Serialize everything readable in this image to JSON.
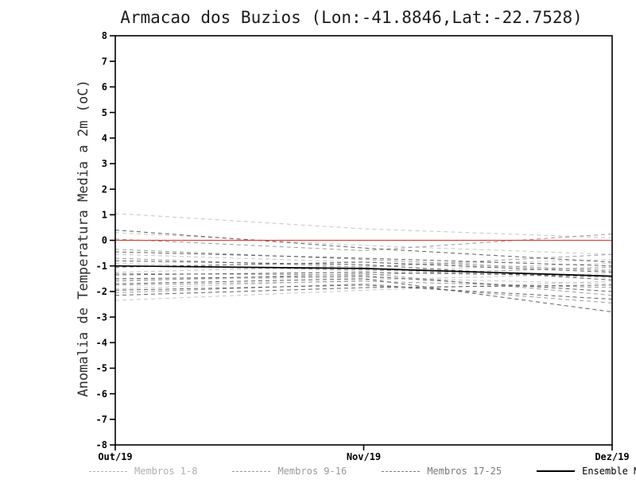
{
  "chart_data": {
    "type": "line",
    "title": "Armacao dos Buzios (Lon:-41.8846,Lat:-22.7528)",
    "ylabel": "Anomalia de Temperatura Media a 2m (oC)",
    "xlabel": "",
    "x_tick_labels": [
      "Out/19",
      "Nov/19",
      "Dez/19"
    ],
    "ylim": [
      -8,
      8
    ],
    "ytick_step": 1,
    "grid": false,
    "frame_color": "#000000",
    "zero_line": {
      "name": "zero-reference",
      "color": "#dd4444",
      "values": [
        0,
        0,
        0
      ]
    },
    "groups": [
      {
        "name": "Membros 1-8",
        "color": "#c6c6c6",
        "dash": true,
        "members": [
          [
            1.05,
            0.45,
            0.1
          ],
          [
            0.3,
            -0.2,
            -0.55
          ],
          [
            -0.55,
            -0.85,
            -1.15
          ],
          [
            -0.9,
            -1.2,
            -0.9
          ],
          [
            -1.25,
            -1.0,
            -0.75
          ],
          [
            -1.55,
            -1.45,
            -1.7
          ],
          [
            -1.9,
            -1.55,
            -1.3
          ],
          [
            -2.35,
            -1.95,
            -1.6
          ]
        ]
      },
      {
        "name": "Membros 9-16",
        "color": "#9a9a9a",
        "dash": true,
        "members": [
          [
            0.05,
            -0.4,
            0.25
          ],
          [
            -0.35,
            -0.75,
            -1.2
          ],
          [
            -0.7,
            -1.05,
            -0.55
          ],
          [
            -1.0,
            -1.15,
            -1.45
          ],
          [
            -1.3,
            -1.35,
            -1.05
          ],
          [
            -1.6,
            -1.3,
            -2.15
          ],
          [
            -1.75,
            -1.6,
            -1.85
          ],
          [
            -2.05,
            -1.7,
            -2.45
          ]
        ]
      },
      {
        "name": "Membros 17-25",
        "color": "#5f5f5f",
        "dash": true,
        "members": [
          [
            0.4,
            -0.3,
            -0.85
          ],
          [
            -0.45,
            -0.7,
            -1.0
          ],
          [
            -0.8,
            -0.95,
            -1.55
          ],
          [
            -1.05,
            -0.85,
            -1.25
          ],
          [
            -1.35,
            -1.25,
            -1.4
          ],
          [
            -1.5,
            -1.4,
            -2.0
          ],
          [
            -1.7,
            -1.5,
            -2.8
          ],
          [
            -1.95,
            -1.75,
            -2.3
          ],
          [
            -2.15,
            -1.85,
            -1.75
          ]
        ]
      }
    ],
    "ensemble_mean": {
      "name": "Ensemble Mean",
      "color": "#000000",
      "values": [
        -1.0,
        -1.1,
        -1.4
      ]
    }
  },
  "legend": {
    "items": [
      {
        "label": "Membros 1-8",
        "color": "#b0b0b0",
        "dash": true
      },
      {
        "label": "Membros 9-16",
        "color": "#9a9a9a",
        "dash": true
      },
      {
        "label": "Membros 17-25",
        "color": "#7a7a7a",
        "dash": true
      },
      {
        "label": "Ensemble Mean",
        "color": "#000000",
        "dash": false
      }
    ]
  }
}
